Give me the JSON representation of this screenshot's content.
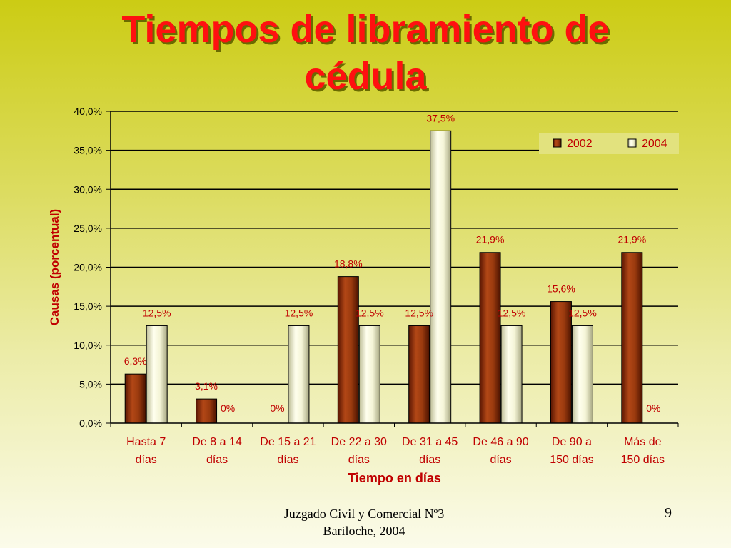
{
  "slide": {
    "title_line1": "Tiempos de libramiento de",
    "title_line2": "cédula",
    "footer_line1": "Juzgado Civil y Comercial Nº3",
    "footer_line2": "Bariloche, 2004",
    "page_number": "9"
  },
  "chart_data": {
    "type": "bar",
    "title": "Tiempos de libramiento de cédula",
    "xlabel": "Tiempo en días",
    "ylabel": "Causas (porcentual)",
    "ylim": [
      0,
      40
    ],
    "yticks": [
      0,
      5,
      10,
      15,
      20,
      25,
      30,
      35,
      40
    ],
    "ytick_labels": [
      "0,0%",
      "5,0%",
      "10,0%",
      "15,0%",
      "20,0%",
      "25,0%",
      "30,0%",
      "35,0%",
      "40,0%"
    ],
    "grid": true,
    "legend_position": "top-right",
    "categories": [
      [
        "Hasta 7",
        "días"
      ],
      [
        "De 8 a 14",
        "días"
      ],
      [
        "De 15 a 21",
        "días"
      ],
      [
        "De 22 a 30",
        "días"
      ],
      [
        "De 31 a 45",
        "días"
      ],
      [
        "De 46 a 90",
        "días"
      ],
      [
        "De 90 a",
        "150 días"
      ],
      [
        "Más de",
        "150 días"
      ]
    ],
    "series": [
      {
        "name": "2002",
        "color": "#8b2a08",
        "values": [
          6.3,
          3.1,
          0,
          18.8,
          12.5,
          21.9,
          15.6,
          21.9
        ],
        "labels": [
          "6,3%",
          "3,1%",
          "0%",
          "18,8%",
          "12,5%",
          "21,9%",
          "15,6%",
          "21,9%"
        ]
      },
      {
        "name": "2004",
        "color": "#f2f2c8",
        "values": [
          12.5,
          0,
          12.5,
          12.5,
          37.5,
          12.5,
          12.5,
          0
        ],
        "labels": [
          "12,5%",
          "0%",
          "12,5%",
          "12,5%",
          "37,5%",
          "12,5%",
          "12,5%",
          "0%"
        ]
      }
    ]
  }
}
